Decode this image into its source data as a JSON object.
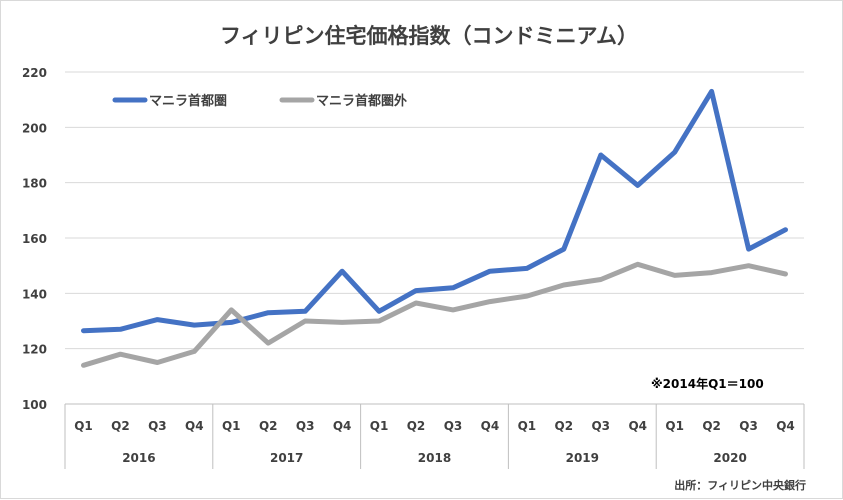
{
  "chart_data": {
    "type": "line",
    "title": "フィリピン住宅価格指数（コンドミニアム）",
    "categories": [
      "Q1",
      "Q2",
      "Q3",
      "Q4",
      "Q1",
      "Q2",
      "Q3",
      "Q4",
      "Q1",
      "Q2",
      "Q3",
      "Q4",
      "Q1",
      "Q2",
      "Q3",
      "Q4",
      "Q1",
      "Q2",
      "Q3",
      "Q4"
    ],
    "groups": [
      "2016",
      "2017",
      "2018",
      "2019",
      "2020"
    ],
    "series": [
      {
        "name": "マニラ首都圏",
        "color": "#4472c4",
        "values": [
          126.5,
          127,
          130.5,
          128.5,
          129.5,
          133,
          133.5,
          148,
          133.5,
          141,
          142,
          148,
          149,
          156,
          190,
          179,
          191,
          213,
          156,
          163
        ]
      },
      {
        "name": "マニラ首都圏外",
        "color": "#a5a5a5",
        "values": [
          114,
          118,
          115,
          119,
          134,
          122,
          130,
          129.5,
          130,
          136.5,
          134,
          137,
          139,
          143,
          145,
          150.5,
          146.5,
          147.5,
          150,
          147
        ]
      }
    ],
    "ylim": [
      100,
      220
    ],
    "yticks": [
      "100",
      "120",
      "140",
      "160",
      "180",
      "200",
      "220"
    ],
    "grid": true,
    "legend_position": "top-left",
    "note": "※2014年Q1＝100",
    "source": "出所：フィリピン中央銀行"
  }
}
